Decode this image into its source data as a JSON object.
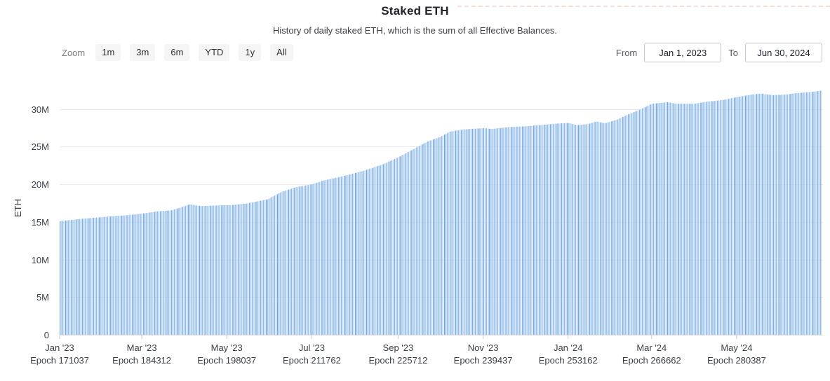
{
  "header": {
    "title": "Staked ETH",
    "subtitle": "History of daily staked ETH, which is the sum of all Effective Balances."
  },
  "toolbar": {
    "zoom_label": "Zoom",
    "buttons": [
      "1m",
      "3m",
      "6m",
      "YTD",
      "1y",
      "All"
    ],
    "from_label": "From",
    "from_value": "Jan 1, 2023",
    "to_label": "To",
    "to_value": "Jun 30, 2024"
  },
  "chart_data": {
    "type": "bar",
    "title": "Staked ETH",
    "subtitle": "History of daily staked ETH, which is the sum of all Effective Balances.",
    "ylabel": "ETH",
    "xlabel": "",
    "unit": "million ETH",
    "ylim": [
      0,
      35
    ],
    "grid": "horizontal",
    "legend": "none",
    "x_start": "Jan 1, 2023",
    "x_end": "Jun 30, 2024",
    "days_total": 547,
    "ytick_values": [
      0,
      5,
      10,
      15,
      20,
      25,
      30
    ],
    "ytick_labels": [
      "0",
      "5M",
      "10M",
      "15M",
      "20M",
      "25M",
      "30M"
    ],
    "x_ticks": [
      {
        "day": 0,
        "label": "Jan '23",
        "epoch": "Epoch 171037"
      },
      {
        "day": 59,
        "label": "Mar '23",
        "epoch": "Epoch 184312"
      },
      {
        "day": 120,
        "label": "May '23",
        "epoch": "Epoch 198037"
      },
      {
        "day": 181,
        "label": "Jul '23",
        "epoch": "Epoch 211762"
      },
      {
        "day": 243,
        "label": "Sep '23",
        "epoch": "Epoch 225712"
      },
      {
        "day": 304,
        "label": "Nov '23",
        "epoch": "Epoch 239437"
      },
      {
        "day": 365,
        "label": "Jan '24",
        "epoch": "Epoch 253162"
      },
      {
        "day": 425,
        "label": "Mar '24",
        "epoch": "Epoch 266662"
      },
      {
        "day": 486,
        "label": "May '24",
        "epoch": "Epoch 280387"
      }
    ],
    "series": [
      {
        "name": "Staked ETH",
        "style": "daily columns",
        "anchors_day_value_millions": [
          [
            0,
            15.1
          ],
          [
            15,
            15.4
          ],
          [
            31,
            15.65
          ],
          [
            45,
            15.85
          ],
          [
            59,
            16.1
          ],
          [
            70,
            16.4
          ],
          [
            80,
            16.55
          ],
          [
            88,
            17.0
          ],
          [
            93,
            17.35
          ],
          [
            101,
            17.1
          ],
          [
            115,
            17.2
          ],
          [
            124,
            17.25
          ],
          [
            134,
            17.45
          ],
          [
            149,
            18.0
          ],
          [
            159,
            19.0
          ],
          [
            169,
            19.6
          ],
          [
            181,
            20.0
          ],
          [
            189,
            20.5
          ],
          [
            199,
            20.9
          ],
          [
            210,
            21.4
          ],
          [
            218,
            21.8
          ],
          [
            231,
            22.6
          ],
          [
            243,
            23.6
          ],
          [
            252,
            24.5
          ],
          [
            264,
            25.7
          ],
          [
            273,
            26.3
          ],
          [
            280,
            27.0
          ],
          [
            290,
            27.3
          ],
          [
            304,
            27.45
          ],
          [
            310,
            27.35
          ],
          [
            322,
            27.6
          ],
          [
            334,
            27.7
          ],
          [
            347,
            27.9
          ],
          [
            356,
            28.05
          ],
          [
            365,
            28.15
          ],
          [
            371,
            27.85
          ],
          [
            379,
            28.0
          ],
          [
            385,
            28.35
          ],
          [
            391,
            28.1
          ],
          [
            400,
            28.6
          ],
          [
            408,
            29.3
          ],
          [
            416,
            29.9
          ],
          [
            425,
            30.7
          ],
          [
            436,
            30.9
          ],
          [
            443,
            30.7
          ],
          [
            455,
            30.7
          ],
          [
            466,
            31.0
          ],
          [
            476,
            31.2
          ],
          [
            486,
            31.6
          ],
          [
            496,
            31.9
          ],
          [
            503,
            32.05
          ],
          [
            512,
            31.85
          ],
          [
            520,
            31.9
          ],
          [
            528,
            32.1
          ],
          [
            535,
            32.2
          ],
          [
            541,
            32.3
          ],
          [
            546,
            32.45
          ]
        ]
      }
    ],
    "colors": {
      "bar_palette": [
        "#7fb0e3",
        "#b9d6f4",
        "#8ab9e9",
        "#d2e4f8",
        "#74a7de",
        "#a5c9f0",
        "#93bee9",
        "#c6dcf6"
      ],
      "gridline": "#ebebeb",
      "axis_line": "#dedede",
      "tick_mark": "#c9c9c9",
      "axis_text": "#394049"
    }
  }
}
